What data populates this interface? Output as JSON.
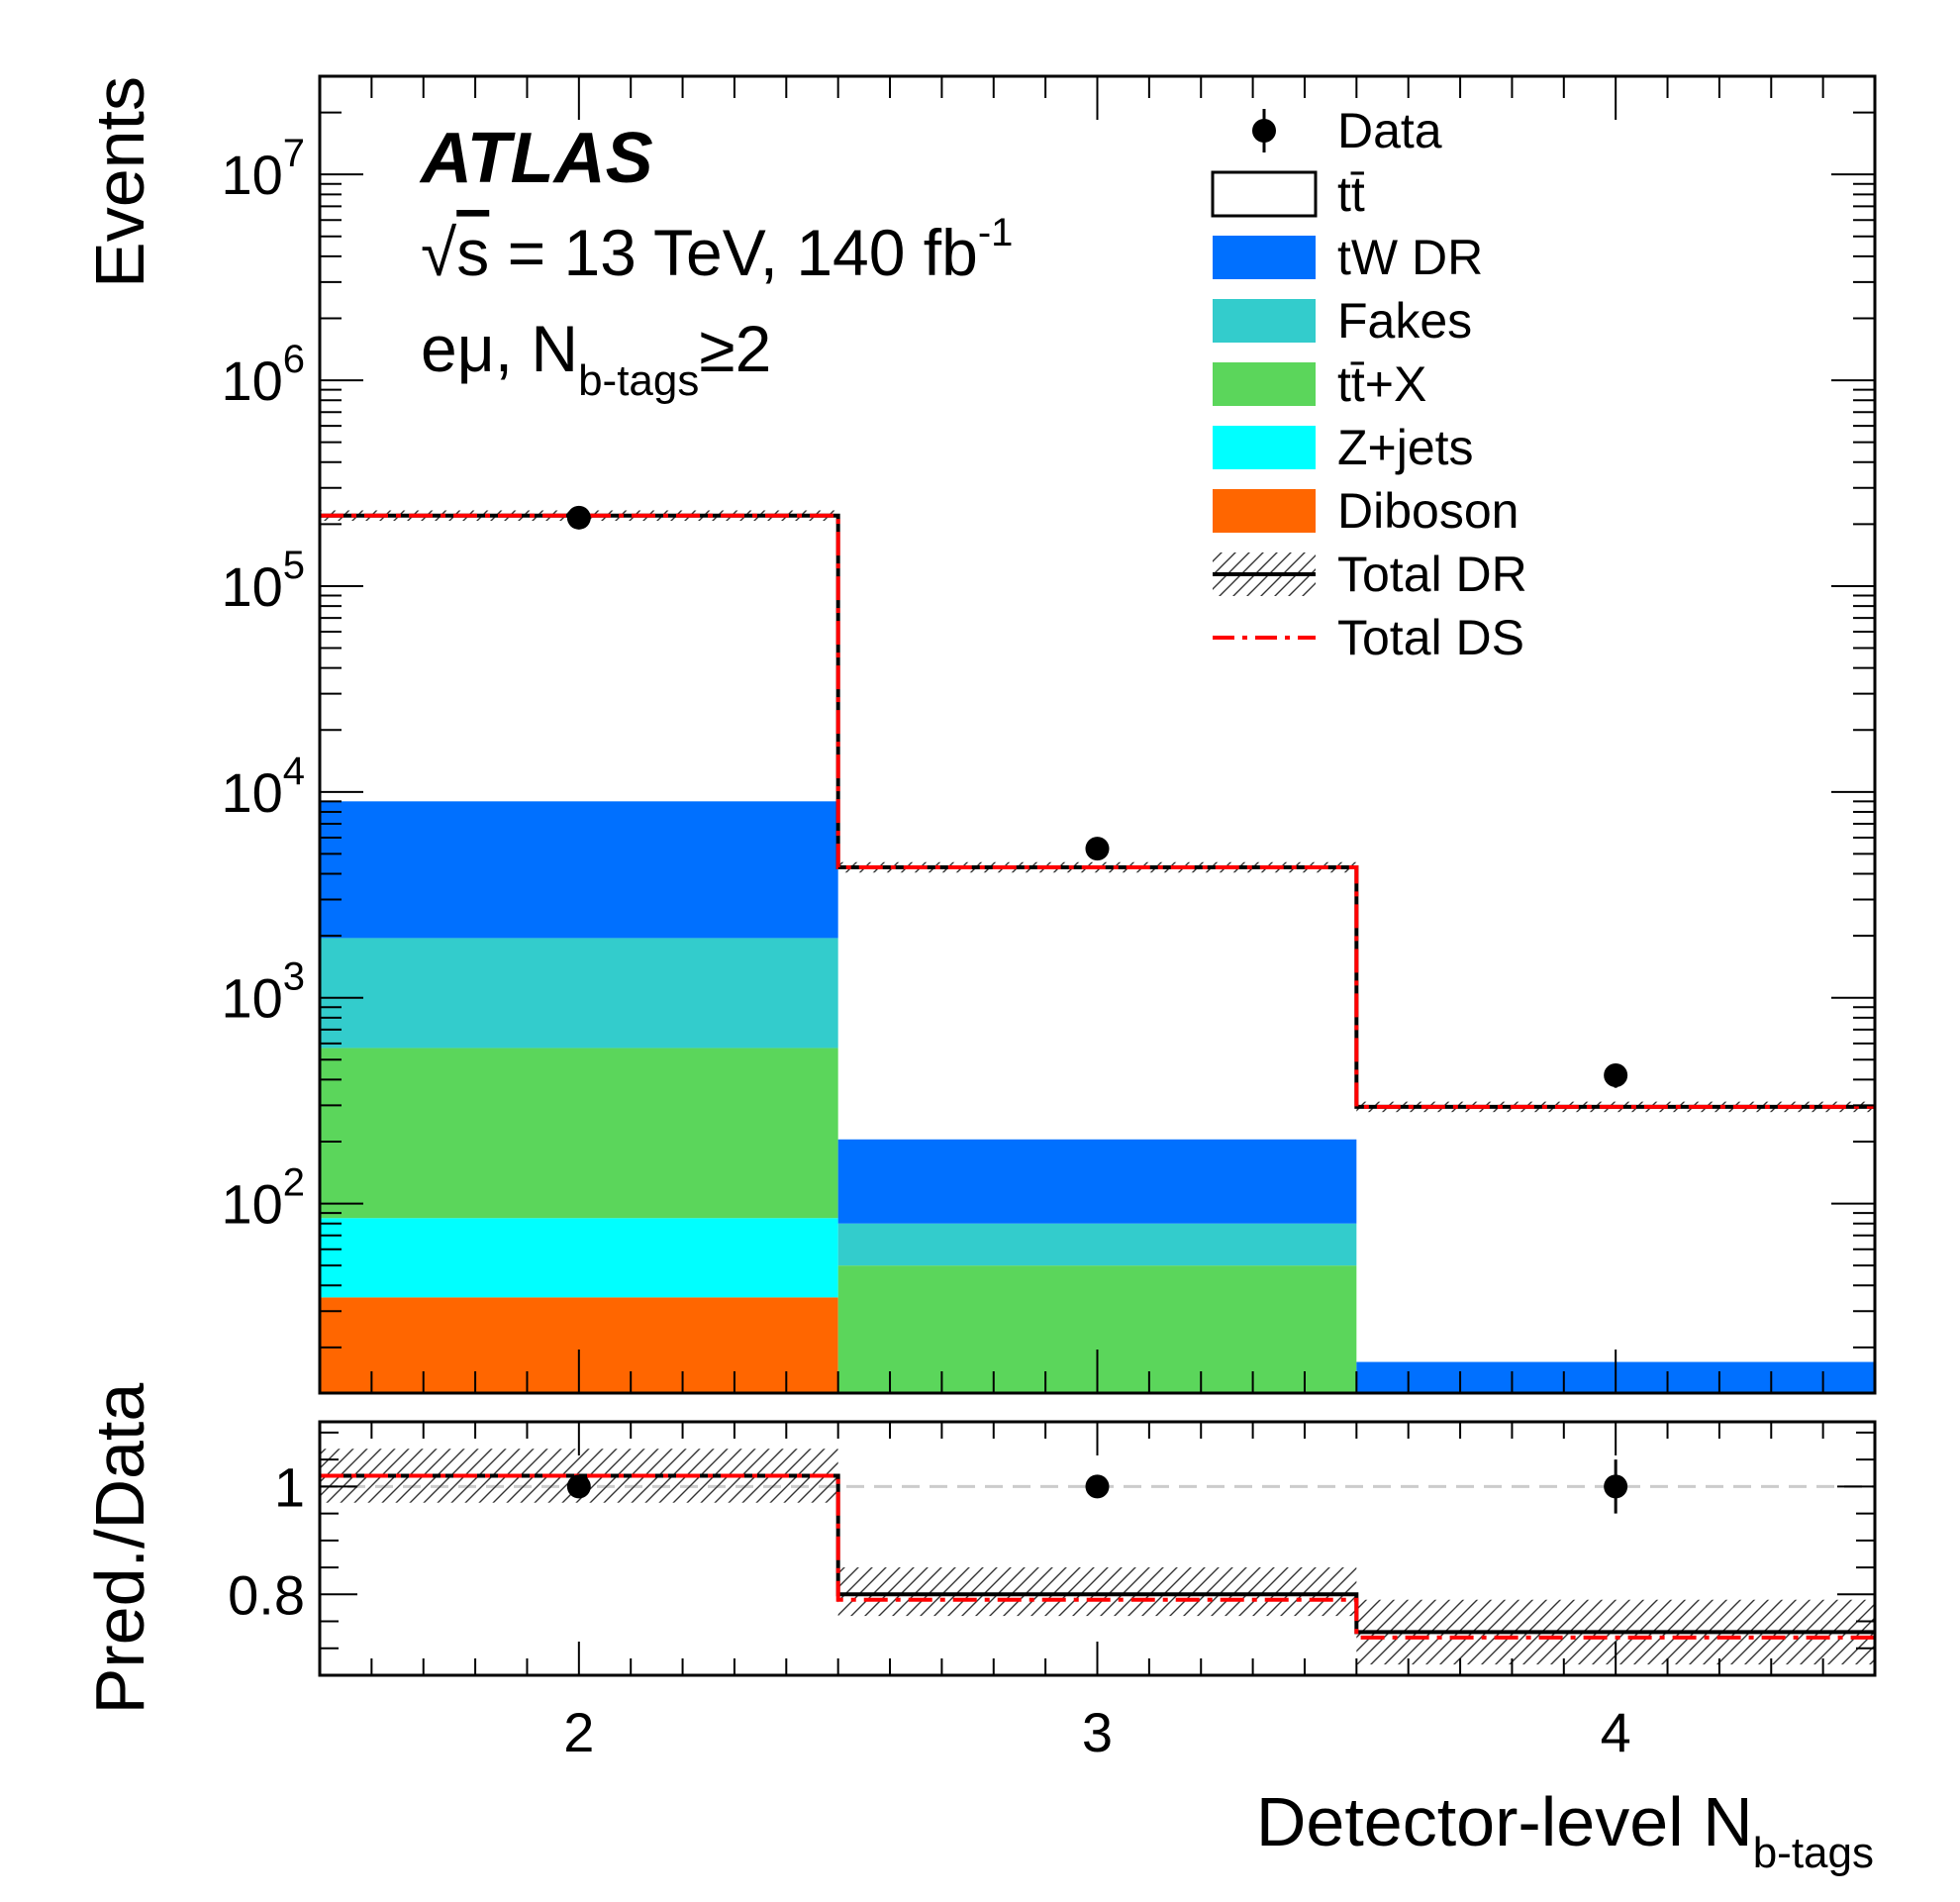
{
  "chart_data": {
    "type": "bar",
    "stacked": true,
    "x_scale": "linear",
    "y_scale": "log",
    "bins": [
      {
        "center": 2,
        "low": 1.5,
        "high": 2.5
      },
      {
        "center": 3,
        "low": 2.5,
        "high": 3.5
      },
      {
        "center": 4,
        "low": 3.5,
        "high": 4.5
      }
    ],
    "xlim": [
      1.5,
      4.5
    ],
    "ylim": [
      12,
      30000000
    ],
    "x_ticks": [
      "2",
      "3",
      "4"
    ],
    "y_ticks": [
      {
        "value": 100,
        "mantissa": "10",
        "exp": "2"
      },
      {
        "value": 1000,
        "mantissa": "10",
        "exp": "3"
      },
      {
        "value": 10000,
        "mantissa": "10",
        "exp": "4"
      },
      {
        "value": 100000,
        "mantissa": "10",
        "exp": "5"
      },
      {
        "value": 1000000,
        "mantissa": "10",
        "exp": "6"
      },
      {
        "value": 10000000,
        "mantissa": "10",
        "exp": "7"
      }
    ],
    "ylabel": "Events",
    "xlabel_main": "Detector-level N",
    "xlabel_sub": "b-tags",
    "atlas_label": "ATLAS",
    "energy_label": {
      "sqrt": "√",
      "s": "s",
      "text": " = 13 TeV, 140 fb",
      "exp": "-1"
    },
    "region_label": {
      "main": "eμ, N",
      "sub": "b-tags",
      "tail": "≥2"
    },
    "stack_order_bottom_to_top": [
      "Diboson",
      "Z+jets",
      "tt+X",
      "Fakes",
      "tW DR"
    ],
    "stack_cumulative": {
      "Diboson": [
        35,
        0,
        0
      ],
      "Z+jets": [
        85,
        0,
        0
      ],
      "tt+X": [
        570,
        50,
        0
      ],
      "Fakes": [
        1950,
        80,
        0
      ],
      "tW DR": [
        9000,
        205,
        17
      ]
    },
    "series": [
      {
        "name": "Data",
        "values": [
          215000,
          5300,
          420
        ],
        "errors": [
          400,
          70,
          55
        ],
        "color": "#000000"
      },
      {
        "name": "tt̄",
        "values": [
          220000,
          4300,
          295
        ],
        "color": "#ffffff"
      },
      {
        "name": "tW DR",
        "color": "#0070ff"
      },
      {
        "name": "Fakes",
        "color": "#33cccc"
      },
      {
        "name": "tt̄+X",
        "color": "#5bd65b"
      },
      {
        "name": "Z+jets",
        "color": "#00ffff"
      },
      {
        "name": "Diboson",
        "color": "#ff6600"
      },
      {
        "name": "Total DR",
        "values": [
          220000,
          4300,
          295
        ],
        "color": "#000000"
      },
      {
        "name": "Total DS",
        "values": [
          220000,
          4300,
          295
        ],
        "color": "#ff0000"
      }
    ],
    "ratio": {
      "ylabel": "Pred./Data",
      "ylim": [
        0.65,
        1.12
      ],
      "y_ticks": [
        "0.8",
        "1"
      ],
      "reference_line": 1,
      "total_dr": [
        1.02,
        0.8,
        0.73
      ],
      "total_ds": [
        1.02,
        0.79,
        0.72
      ],
      "band": [
        [
          0.97,
          1.07
        ],
        [
          0.76,
          0.85
        ],
        [
          0.67,
          0.79
        ]
      ],
      "data_points": [
        1,
        1,
        1
      ],
      "data_errors": [
        0.005,
        0.015,
        0.05
      ],
      "reference_color": "#cccccc"
    },
    "legend": {
      "placement": "top-right",
      "entries": [
        {
          "label": "Data",
          "style": "marker"
        },
        {
          "label": "tt̄",
          "style": "box",
          "color": "#ffffff"
        },
        {
          "label": "tW DR",
          "style": "fill",
          "color": "#0070ff"
        },
        {
          "label": "Fakes",
          "style": "fill",
          "color": "#33cccc"
        },
        {
          "label": "tt̄+X",
          "style": "fill",
          "color": "#5bd65b"
        },
        {
          "label": "Z+jets",
          "style": "fill",
          "color": "#00ffff"
        },
        {
          "label": "Diboson",
          "style": "fill",
          "color": "#ff6600"
        },
        {
          "label": "Total DR",
          "style": "hatched-line",
          "color": "#000000"
        },
        {
          "label": "Total DS",
          "style": "dashdot",
          "color": "#ff0000"
        }
      ]
    }
  }
}
